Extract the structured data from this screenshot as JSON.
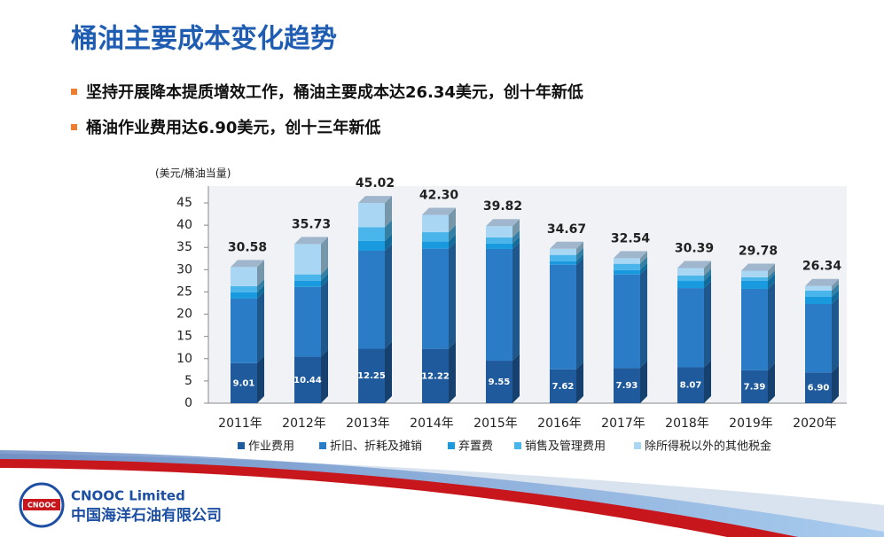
{
  "header": {
    "title": "桶油主要成本变化趋势"
  },
  "bullets": [
    "坚持开展降本提质增效工作，桶油主要成本达26.34美元，创十年新低",
    "桶油作业费用达6.90美元，创十三年新低"
  ],
  "chart_data": {
    "type": "stacked-bar-3d",
    "ylabel": "(美元/桶油当量)",
    "categories": [
      "2011年",
      "2012年",
      "2013年",
      "2014年",
      "2015年",
      "2016年",
      "2017年",
      "2018年",
      "2019年",
      "2020年"
    ],
    "series": [
      {
        "name": "作业费用",
        "color": "#1f5b9c",
        "values": [
          9.01,
          10.44,
          12.25,
          12.22,
          9.55,
          7.62,
          7.93,
          8.07,
          7.39,
          6.9
        ],
        "value_labels": [
          "9.01",
          "10.44",
          "12.25",
          "12.22",
          "9.55",
          "7.62",
          "7.93",
          "8.07",
          "7.39",
          "6.90"
        ]
      },
      {
        "name": "折旧、折耗及摊销",
        "color": "#2a7cc6",
        "values": [
          14.5,
          15.7,
          22.0,
          22.5,
          25.1,
          23.5,
          21.0,
          17.8,
          18.3,
          15.4
        ]
      },
      {
        "name": "弃置费",
        "color": "#1a9ade",
        "values": [
          1.4,
          1.4,
          2.2,
          1.6,
          1.2,
          0.8,
          1.0,
          1.6,
          1.8,
          1.6
        ]
      },
      {
        "name": "销售及管理费用",
        "color": "#4ab5ea",
        "values": [
          1.4,
          1.4,
          3.1,
          2.1,
          1.4,
          1.4,
          1.4,
          1.2,
          0.8,
          1.4
        ]
      },
      {
        "name": "除所得税以外的其他税金",
        "color": "#a9d7f3",
        "values": [
          4.28,
          6.83,
          5.42,
          3.9,
          2.52,
          1.37,
          1.24,
          1.69,
          1.48,
          1.04
        ]
      }
    ],
    "totals": {
      "values": [
        30.58,
        35.73,
        45.02,
        42.3,
        39.82,
        34.67,
        32.54,
        30.39,
        29.78,
        26.34
      ],
      "value_labels": [
        "30.58",
        "35.73",
        "45.02",
        "42.30",
        "39.82",
        "34.67",
        "32.54",
        "30.39",
        "29.78",
        "26.34"
      ]
    },
    "ylim": [
      0,
      45
    ],
    "yticks": [
      0,
      5,
      10,
      15,
      20,
      25,
      30,
      35,
      40,
      45
    ],
    "grid": false
  },
  "footer": {
    "logo": "CNOOC",
    "company_en": "CNOOC Limited",
    "company_cn": "中国海洋石油有限公司"
  }
}
